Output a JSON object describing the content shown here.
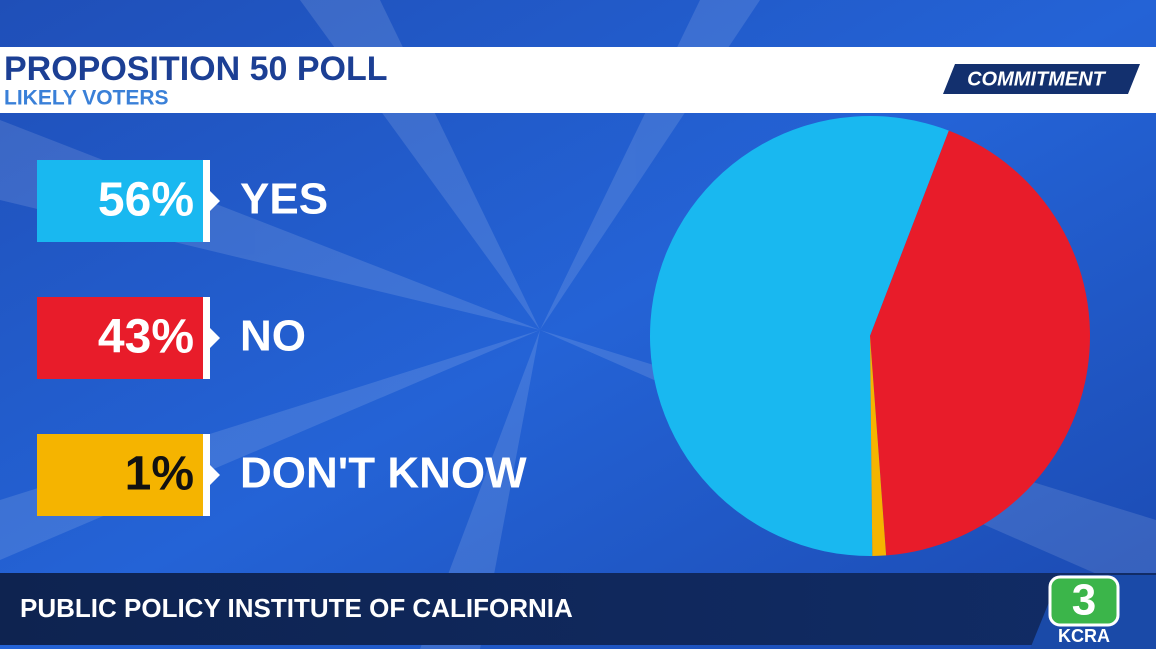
{
  "chart_data": {
    "type": "pie",
    "title": "PROPOSITION 50 POLL",
    "subtitle": "LIKELY VOTERS",
    "categories": [
      "YES",
      "NO",
      "DON'T KNOW"
    ],
    "values": [
      56,
      43,
      1
    ],
    "value_labels": [
      "56%",
      "43%",
      "1%"
    ],
    "colors": [
      "#19b8f0",
      "#e81c2a",
      "#f5b400"
    ],
    "source": "PUBLIC POLICY INSTITUTE OF CALIFORNIA"
  },
  "branding": {
    "show": "COMMITMENT",
    "channel": "3",
    "station": "KCRA"
  }
}
